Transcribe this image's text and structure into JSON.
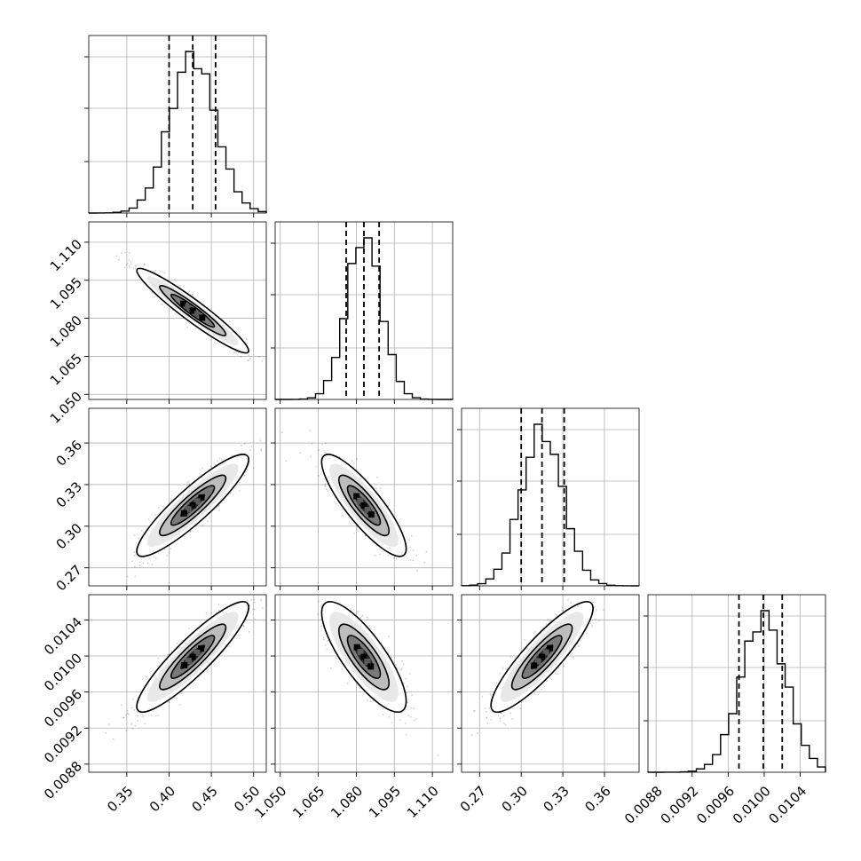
{
  "chart_data": {
    "type": "corner",
    "parameters": [
      {
        "range": [
          0.305,
          0.515
        ],
        "ticks": [
          "0.35",
          "0.40",
          "0.45",
          "0.50"
        ],
        "tick_values": [
          0.35,
          0.4,
          0.45,
          0.5
        ],
        "quantiles": [
          0.4,
          0.428,
          0.455
        ],
        "mean": 0.428,
        "sd": 0.027
      },
      {
        "range": [
          1.048,
          1.118
        ],
        "ticks": [
          "1.050",
          "1.065",
          "1.080",
          "1.095",
          "1.110"
        ],
        "tick_values": [
          1.05,
          1.065,
          1.08,
          1.095,
          1.11
        ],
        "quantiles": [
          1.076,
          1.083,
          1.089
        ],
        "mean": 1.083,
        "sd": 0.0068
      },
      {
        "range": [
          0.257,
          0.385
        ],
        "ticks": [
          "0.27",
          "0.30",
          "0.33",
          "0.36"
        ],
        "tick_values": [
          0.27,
          0.3,
          0.33,
          0.36
        ],
        "quantiles": [
          0.3,
          0.315,
          0.331
        ],
        "mean": 0.315,
        "sd": 0.015
      },
      {
        "range": [
          0.00871,
          0.01068
        ],
        "ticks": [
          "0.0088",
          "0.0092",
          "0.0096",
          "0.0100",
          "0.0104"
        ],
        "tick_values": [
          0.0088,
          0.0092,
          0.0096,
          0.01,
          0.0104
        ],
        "quantiles": [
          0.00972,
          0.00999,
          0.0102
        ],
        "mean": 0.00999,
        "sd": 0.00025
      }
    ],
    "correlations": {
      "1-0": -0.95,
      "2-0": 0.9,
      "2-1": -0.85,
      "3-0": 0.9,
      "3-1": -0.8,
      "3-2": 0.88
    },
    "grid": true,
    "title": "",
    "xlabel": "",
    "ylabel": ""
  }
}
